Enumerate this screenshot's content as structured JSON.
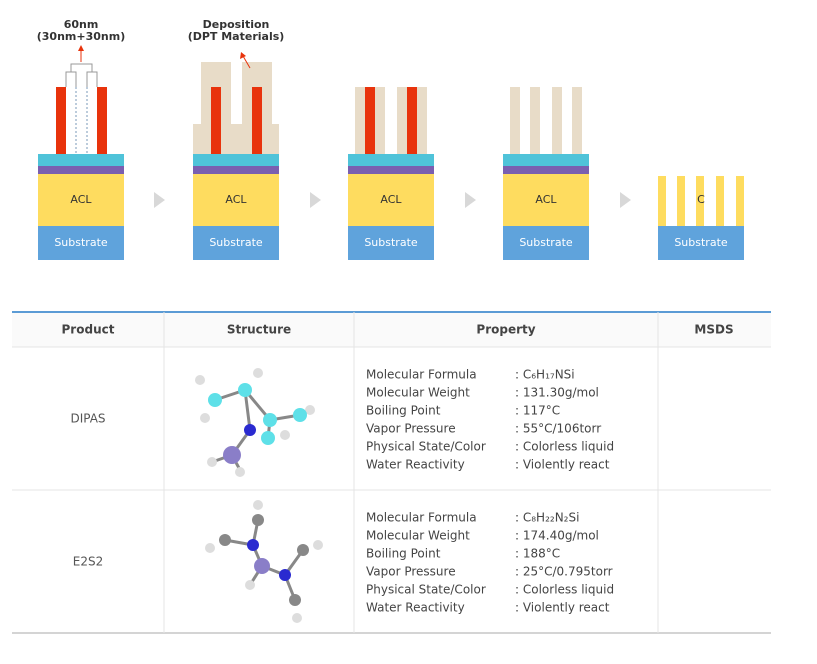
{
  "diagram": {
    "labels": [
      {
        "lines": [
          "60nm",
          "(30nm+30nm)"
        ]
      },
      {
        "lines": [
          "Deposition",
          "(DPT Materials)"
        ]
      }
    ],
    "steps": [
      {
        "layer": "ACL",
        "base": "Substrate"
      },
      {
        "layer": "ACL",
        "base": "Substrate"
      },
      {
        "layer": "ACL",
        "base": "Substrate"
      },
      {
        "layer": "ACL",
        "base": "Substrate"
      },
      {
        "layer": "C",
        "base": "Substrate"
      }
    ]
  },
  "table": {
    "headers": [
      "Product",
      "Structure",
      "Property",
      "MSDS"
    ],
    "rows": [
      {
        "product": "DIPAS",
        "properties": [
          [
            "Molecular Formula",
            ": C₆H₁₇NSi"
          ],
          [
            "Molecular Weight",
            ": 131.30g/mol"
          ],
          [
            "Boiling Point",
            ": 117°C"
          ],
          [
            "Vapor Pressure",
            ": 55°C/106torr"
          ],
          [
            "Physical State/Color",
            ": Colorless liquid"
          ],
          [
            "Water Reactivity",
            ": Violently react"
          ]
        ]
      },
      {
        "product": "E2S2",
        "properties": [
          [
            "Molecular Formula",
            ": C₈H₂₂N₂Si"
          ],
          [
            "Molecular Weight",
            ": 174.40g/mol"
          ],
          [
            "Boiling Point",
            ": 188°C"
          ],
          [
            "Vapor Pressure",
            ": 25°C/0.795torr"
          ],
          [
            "Physical State/Color",
            ": Colorless liquid"
          ],
          [
            "Water Reactivity",
            ": Violently react"
          ]
        ]
      }
    ]
  }
}
